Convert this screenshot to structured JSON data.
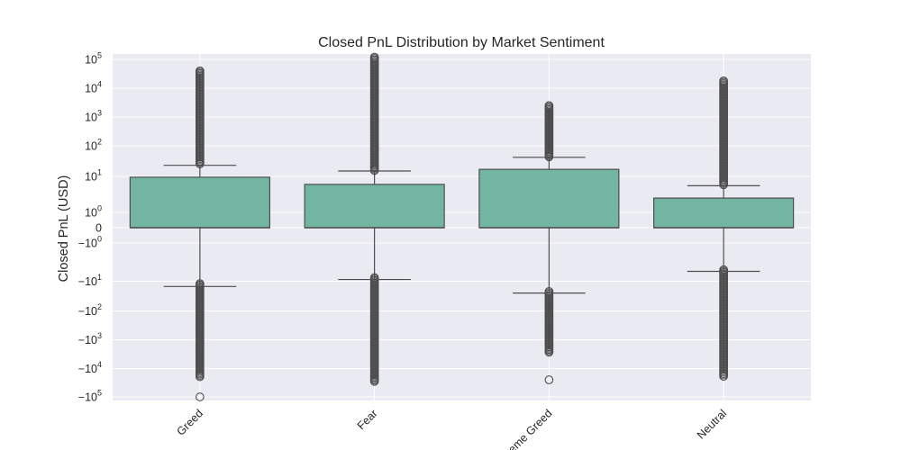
{
  "chart_data": {
    "type": "box",
    "title": "Closed PnL Distribution by Market Sentiment",
    "xlabel": "",
    "ylabel": "Closed PnL (USD)",
    "yscale": "symlog",
    "categories": [
      "Greed",
      "Fear",
      "Extreme Greed",
      "Neutral"
    ],
    "y_tick_labels": [
      {
        "value": 100000,
        "base": "10",
        "exp": "5"
      },
      {
        "value": 10000,
        "base": "10",
        "exp": "4"
      },
      {
        "value": 1000,
        "base": "10",
        "exp": "3"
      },
      {
        "value": 100,
        "base": "10",
        "exp": "2"
      },
      {
        "value": 10,
        "base": "10",
        "exp": "1"
      },
      {
        "value": 1,
        "base": "10",
        "exp": "0"
      },
      {
        "value": 0,
        "base": "0",
        "exp": ""
      },
      {
        "value": -1,
        "base": "−10",
        "exp": "0"
      },
      {
        "value": -10,
        "base": "−10",
        "exp": "1"
      },
      {
        "value": -100,
        "base": "−10",
        "exp": "2"
      },
      {
        "value": -1000,
        "base": "−10",
        "exp": "3"
      },
      {
        "value": -10000,
        "base": "−10",
        "exp": "4"
      },
      {
        "value": -100000,
        "base": "−10",
        "exp": "5"
      }
    ],
    "boxes": [
      {
        "category": "Greed",
        "whisker_low": -15,
        "q1": 0,
        "median": 0,
        "q3": 9.5,
        "whisker_high": 23,
        "outliers_high": {
          "from": 23,
          "to": 40000
        },
        "outliers_low": {
          "from": -12,
          "to": -20000
        },
        "extra_outliers": [
          -100000
        ]
      },
      {
        "category": "Fear",
        "whisker_low": -9,
        "q1": 0,
        "median": 0,
        "q3": 6,
        "whisker_high": 15,
        "outliers_high": {
          "from": 15,
          "to": 120000
        },
        "outliers_low": {
          "from": -8,
          "to": -30000
        },
        "extra_outliers": []
      },
      {
        "category": "Extreme Greed",
        "whisker_low": -25,
        "q1": 0,
        "median": 0,
        "q3": 17,
        "whisker_high": 42,
        "outliers_high": {
          "from": 42,
          "to": 2500
        },
        "outliers_low": {
          "from": -22,
          "to": -3000
        },
        "extra_outliers": [
          -25000
        ]
      },
      {
        "category": "Neutral",
        "whisker_low": -5.5,
        "q1": 0,
        "median": 0,
        "q3": 2.5,
        "whisker_high": 5.5,
        "outliers_high": {
          "from": 5.5,
          "to": 18000
        },
        "outliers_low": {
          "from": -5,
          "to": -20000
        },
        "extra_outliers": []
      }
    ],
    "colors": {
      "box_fill": "#72b6a1",
      "line": "#4d4d4d",
      "plot_bg": "#eaeaf2",
      "grid": "#ffffff"
    },
    "grid": true,
    "legend": "none"
  }
}
